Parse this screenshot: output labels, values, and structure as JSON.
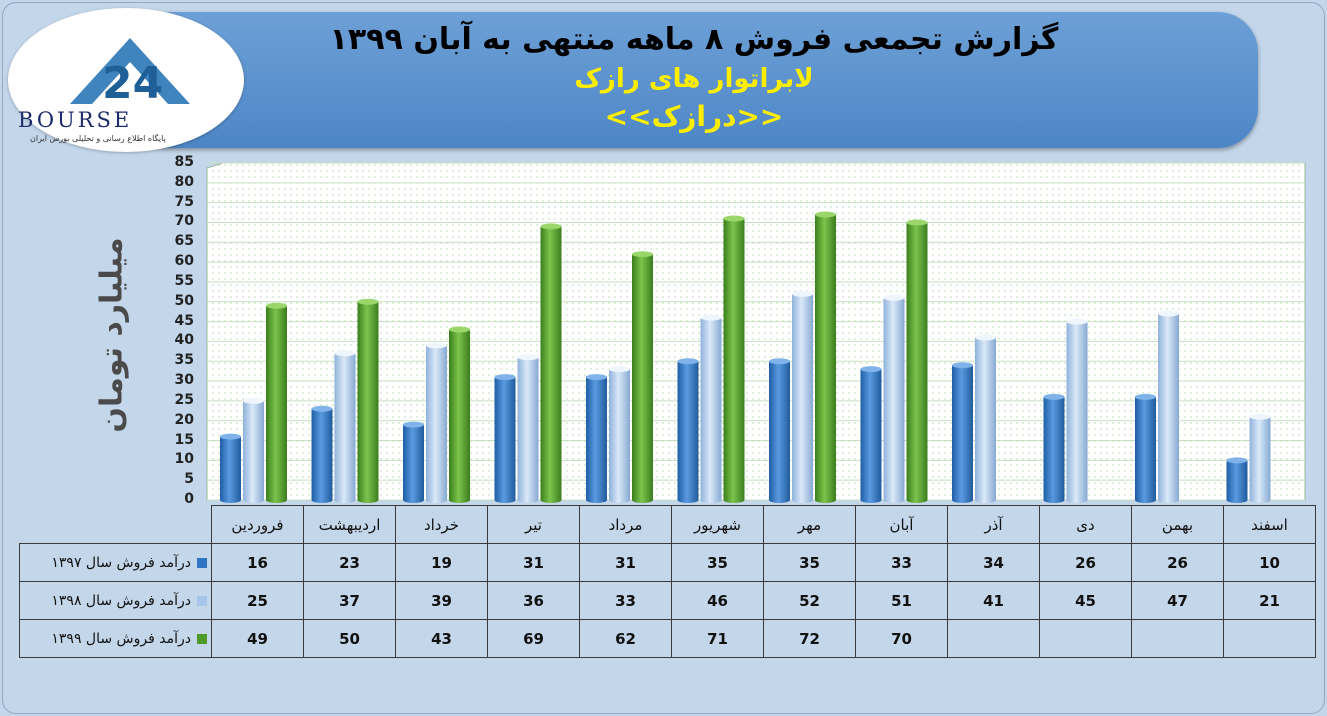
{
  "header": {
    "title": "گزارش تجمعی فروش ۸ ماهه منتهی به آبان ۱۳۹۹",
    "company": "لابراتوار های رازک",
    "symbol": "<<درازک>>"
  },
  "logo": {
    "text": "BOURSE",
    "subtitle": "پایگاه اطلاع رسانی و تحلیلی بورس ایران"
  },
  "colors": {
    "series_1397": "#2e75c4",
    "series_1398": "#a6c5e8",
    "series_1399": "#4e9a2b"
  },
  "chart_data": {
    "type": "bar",
    "title": "گزارش تجمعی فروش ۸ ماهه منتهی به آبان ۱۳۹۹",
    "ylabel": "میلیارد تومان",
    "xlabel": "",
    "ylim": [
      0,
      85
    ],
    "yticks": [
      "0",
      "5",
      "10",
      "15",
      "20",
      "25",
      "30",
      "35",
      "40",
      "45",
      "50",
      "55",
      "60",
      "65",
      "70",
      "75",
      "80",
      "85"
    ],
    "grid": true,
    "categories": [
      "فروردین",
      "اردیبهشت",
      "خرداد",
      "تیر",
      "مرداد",
      "شهریور",
      "مهر",
      "آبان",
      "آذر",
      "دی",
      "بهمن",
      "اسفند"
    ],
    "series": [
      {
        "name": "درآمد فروش سال ۱۳۹۷",
        "values": [
          16,
          23,
          19,
          31,
          31,
          35,
          35,
          33,
          34,
          26,
          26,
          10
        ]
      },
      {
        "name": "درآمد فروش سال ۱۳۹۸",
        "values": [
          25,
          37,
          39,
          36,
          33,
          46,
          52,
          51,
          41,
          45,
          47,
          21
        ]
      },
      {
        "name": "درآمد فروش سال ۱۳۹۹",
        "values": [
          49,
          50,
          43,
          69,
          62,
          71,
          72,
          70,
          null,
          null,
          null,
          null
        ]
      }
    ]
  }
}
